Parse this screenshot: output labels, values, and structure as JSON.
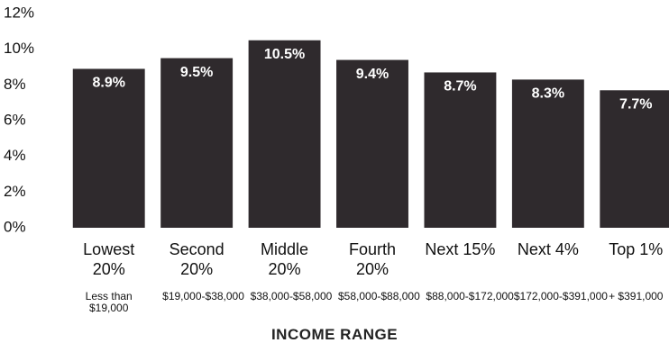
{
  "chart_data": {
    "type": "bar",
    "xlabel": "INCOME RANGE",
    "categories": [
      "Lowest 20%",
      "Second 20%",
      "Middle 20%",
      "Fourth 20%",
      "Next 15%",
      "Next 4%",
      "Top 1%"
    ],
    "ranges": [
      "Less than $19,000",
      "$19,000-$38,000",
      "$38,000-$58,000",
      "$58,000-$88,000",
      "$88,000-$172,000",
      "$172,000-$391,000",
      "+ $391,000"
    ],
    "values": [
      8.9,
      9.5,
      10.5,
      9.4,
      8.7,
      8.3,
      7.7
    ],
    "value_labels": [
      "8.9%",
      "9.5%",
      "10.5%",
      "9.4%",
      "8.7%",
      "8.3%",
      "7.7%"
    ],
    "color": "#2f2a2d",
    "ylim": [
      0,
      12
    ],
    "yticks": [
      {
        "value": 0,
        "label": "0%"
      },
      {
        "value": 2,
        "label": "2%"
      },
      {
        "value": 4,
        "label": "4%"
      },
      {
        "value": 6,
        "label": "6%"
      },
      {
        "value": 8,
        "label": "8%"
      },
      {
        "value": 10,
        "label": "10%"
      },
      {
        "value": 12,
        "label": "12%"
      }
    ]
  }
}
